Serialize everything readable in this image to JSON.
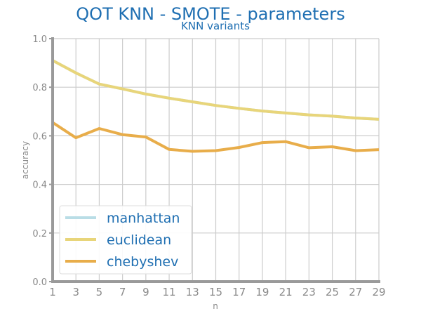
{
  "chart_data": {
    "type": "line",
    "title": "QOT KNN - SMOTE - parameters",
    "subtitle": "KNN variants",
    "xlabel": "n",
    "ylabel": "accuracy",
    "x": [
      1,
      3,
      5,
      7,
      9,
      11,
      13,
      15,
      17,
      19,
      21,
      23,
      25,
      27,
      29
    ],
    "xlim": [
      1,
      29
    ],
    "ylim": [
      0.0,
      1.0
    ],
    "xticks": [
      "1",
      "3",
      "5",
      "7",
      "9",
      "11",
      "13",
      "15",
      "17",
      "19",
      "21",
      "23",
      "25",
      "27",
      "29"
    ],
    "yticks": [
      "0.0",
      "0.2",
      "0.4",
      "0.6",
      "0.8",
      "1.0"
    ],
    "grid": true,
    "legend_position": "bottom-left",
    "series": [
      {
        "name": "manhattan",
        "color": "#b9dde6",
        "values": [
          0.91,
          0.859,
          0.813,
          0.793,
          0.772,
          0.755,
          0.74,
          0.725,
          0.713,
          0.702,
          0.694,
          0.686,
          0.681,
          0.673,
          0.668
        ]
      },
      {
        "name": "euclidean",
        "color": "#e8d57a",
        "values": [
          0.91,
          0.859,
          0.813,
          0.793,
          0.772,
          0.755,
          0.74,
          0.725,
          0.713,
          0.702,
          0.694,
          0.686,
          0.681,
          0.673,
          0.668
        ]
      },
      {
        "name": "chebyshev",
        "color": "#e8ad4a",
        "values": [
          0.655,
          0.592,
          0.63,
          0.605,
          0.595,
          0.544,
          0.536,
          0.539,
          0.552,
          0.572,
          0.576,
          0.551,
          0.555,
          0.539,
          0.543
        ]
      }
    ]
  }
}
